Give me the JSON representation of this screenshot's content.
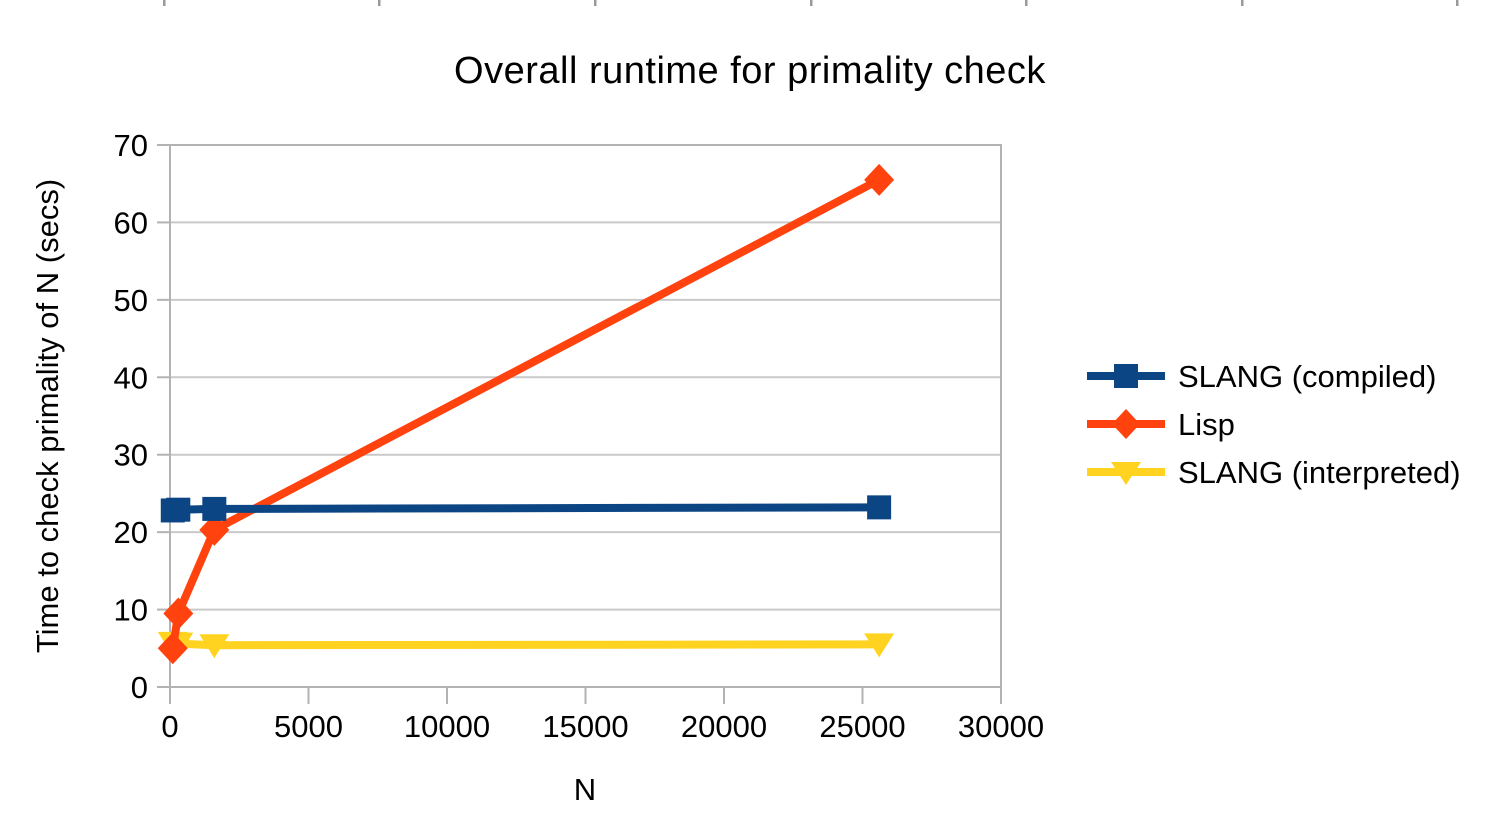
{
  "title": "Overall runtime for primality check",
  "chart_data": {
    "type": "line",
    "title": "Overall runtime for primality check",
    "xlabel": "N",
    "ylabel": "Time to check primality of N (secs)",
    "xlim": [
      0,
      30000
    ],
    "ylim": [
      0,
      70
    ],
    "x_ticks": [
      0,
      5000,
      10000,
      15000,
      20000,
      25000,
      30000
    ],
    "y_ticks": [
      0,
      10,
      20,
      30,
      40,
      50,
      60,
      70
    ],
    "grid": "horizontal-only",
    "legend_position": "right",
    "series": [
      {
        "name": "SLANG (compiled)",
        "color": "#0c4584",
        "marker": "square",
        "x": [
          100,
          300,
          1600,
          25600
        ],
        "y": [
          22.8,
          22.9,
          23.0,
          23.2
        ]
      },
      {
        "name": "Lisp",
        "color": "#ff420e",
        "marker": "diamond",
        "x": [
          100,
          300,
          1600,
          25600
        ],
        "y": [
          5.0,
          9.5,
          20.3,
          65.5
        ]
      },
      {
        "name": "SLANG (interpreted)",
        "color": "#ffd320",
        "marker": "triangle-down",
        "x": [
          100,
          300,
          1600,
          25600
        ],
        "y": [
          5.7,
          5.6,
          5.4,
          5.5
        ]
      }
    ],
    "draw_order": [
      2,
      1,
      0
    ]
  },
  "colors": {
    "background": "#ffffff",
    "gridline": "#c9c9c9",
    "plot_border": "#b3b3b3",
    "axis_tick": "#b3b3b3",
    "top_ruler_tick": "#999999",
    "text": "#000000"
  },
  "top_ruler_ticks_x": [
    163,
    378,
    594,
    810,
    1025,
    1241,
    1456
  ]
}
